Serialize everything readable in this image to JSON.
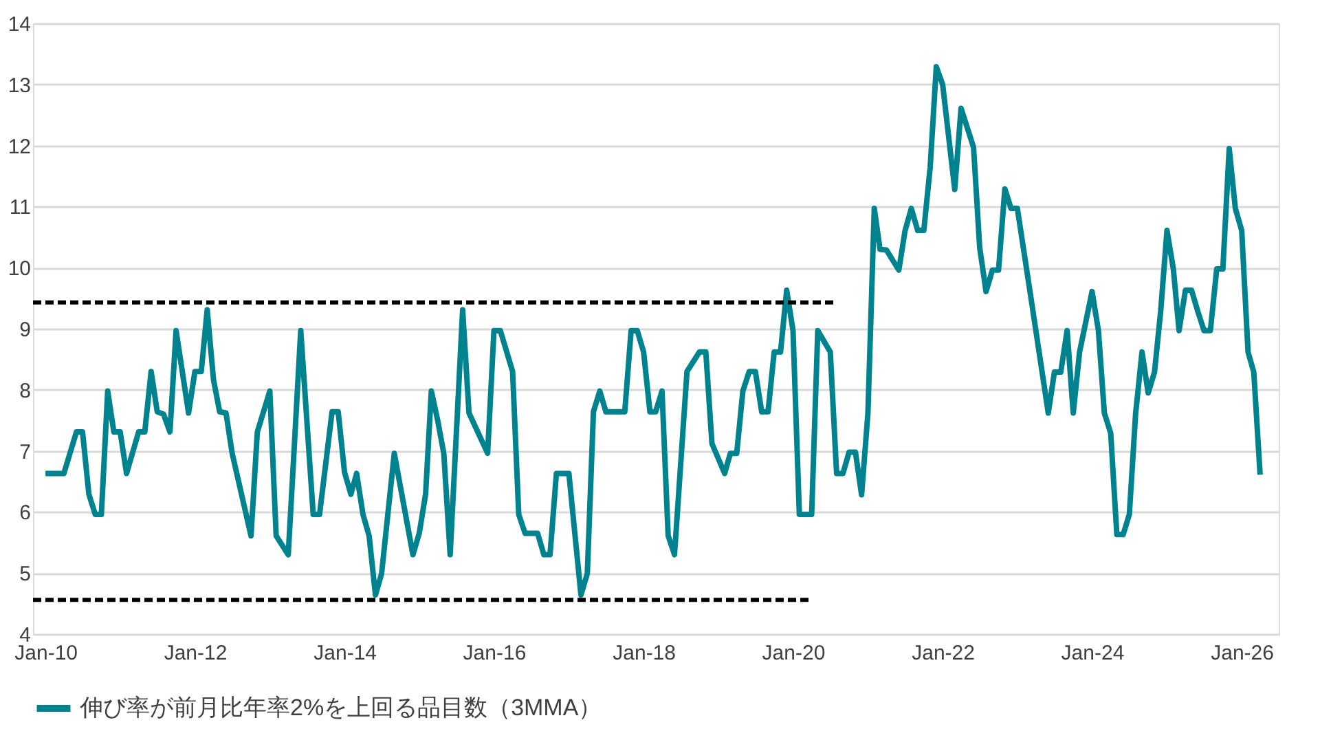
{
  "chart_data": {
    "type": "line",
    "legend_title": null,
    "xlim": [
      "2009-11",
      "2026-07"
    ],
    "ylim": [
      4,
      14
    ],
    "xticks": [
      {
        "value": "2010-01",
        "label": "Jan-10"
      },
      {
        "value": "2012-01",
        "label": "Jan-12"
      },
      {
        "value": "2014-01",
        "label": "Jan-14"
      },
      {
        "value": "2016-01",
        "label": "Jan-16"
      },
      {
        "value": "2018-01",
        "label": "Jan-18"
      },
      {
        "value": "2020-01",
        "label": "Jan-20"
      },
      {
        "value": "2022-01",
        "label": "Jan-22"
      },
      {
        "value": "2024-01",
        "label": "Jan-24"
      },
      {
        "value": "2026-01",
        "label": "Jan-26"
      }
    ],
    "yticks": [
      4,
      5,
      6,
      7,
      8,
      9,
      10,
      11,
      12,
      13,
      14
    ],
    "grid": "y",
    "legend": "bottom",
    "marker": "none",
    "series": [
      {
        "name": "伸び率が前月比年率2%を上回る品目数（3MMA）",
        "color": "#00838f",
        "line_style": "solid",
        "x": [
          "2010-01",
          "2010-04",
          "2010-06",
          "2010-07",
          "2010-08",
          "2010-09",
          "2010-10",
          "2010-11",
          "2010-12",
          "2011-01",
          "2011-02",
          "2011-04",
          "2011-05",
          "2011-06",
          "2011-07",
          "2011-08",
          "2011-09",
          "2011-10",
          "2011-12",
          "2012-01",
          "2012-02",
          "2012-03",
          "2012-04",
          "2012-05",
          "2012-06",
          "2012-07",
          "2012-10",
          "2012-11",
          "2013-01",
          "2013-02",
          "2013-04",
          "2013-06",
          "2013-08",
          "2013-09",
          "2013-11",
          "2013-12",
          "2014-01",
          "2014-02",
          "2014-03",
          "2014-04",
          "2014-05",
          "2014-06",
          "2014-07",
          "2014-09",
          "2014-12",
          "2015-01",
          "2015-02",
          "2015-03",
          "2015-04",
          "2015-05",
          "2015-06",
          "2015-08",
          "2015-09",
          "2015-12",
          "2016-01",
          "2016-02",
          "2016-04",
          "2016-05",
          "2016-06",
          "2016-08",
          "2016-09",
          "2016-10",
          "2016-11",
          "2017-01",
          "2017-03",
          "2017-04",
          "2017-05",
          "2017-06",
          "2017-07",
          "2017-10",
          "2017-11",
          "2017-12",
          "2018-01",
          "2018-02",
          "2018-03",
          "2018-04",
          "2018-05",
          "2018-06",
          "2018-08",
          "2018-10",
          "2018-11",
          "2018-12",
          "2019-02",
          "2019-03",
          "2019-04",
          "2019-05",
          "2019-06",
          "2019-07",
          "2019-08",
          "2019-09",
          "2019-10",
          "2019-11",
          "2019-12",
          "2020-01",
          "2020-02",
          "2020-04",
          "2020-05",
          "2020-07",
          "2020-08",
          "2020-09",
          "2020-10",
          "2020-11",
          "2020-12",
          "2021-01",
          "2021-02",
          "2021-03",
          "2021-04",
          "2021-06",
          "2021-07",
          "2021-08",
          "2021-09",
          "2021-10",
          "2021-11",
          "2021-12",
          "2022-01",
          "2022-03",
          "2022-04",
          "2022-06",
          "2022-07",
          "2022-08",
          "2022-09",
          "2022-10",
          "2022-11",
          "2022-12",
          "2023-01",
          "2023-03",
          "2023-06",
          "2023-07",
          "2023-08",
          "2023-09",
          "2023-10",
          "2023-11",
          "2024-01",
          "2024-02",
          "2024-03",
          "2024-04",
          "2024-05",
          "2024-06",
          "2024-07",
          "2024-08",
          "2024-09",
          "2024-10",
          "2024-11",
          "2024-12",
          "2025-01",
          "2025-02",
          "2025-03",
          "2025-04",
          "2025-05",
          "2025-06",
          "2025-07",
          "2025-08",
          "2025-09",
          "2025-10",
          "2025-11",
          "2025-12",
          "2026-01",
          "2026-02",
          "2026-03",
          "2026-04"
        ],
        "values": [
          6.63,
          6.63,
          7.31,
          7.31,
          6.29,
          5.96,
          5.96,
          7.98,
          7.31,
          7.31,
          6.63,
          7.31,
          7.31,
          8.3,
          7.64,
          7.6,
          7.31,
          8.97,
          7.62,
          8.3,
          8.3,
          9.31,
          8.16,
          7.64,
          7.62,
          6.96,
          5.61,
          7.31,
          7.98,
          5.61,
          5.3,
          8.97,
          5.96,
          5.96,
          7.64,
          7.64,
          6.65,
          6.29,
          6.63,
          5.96,
          5.61,
          4.64,
          4.99,
          6.96,
          5.3,
          5.65,
          6.29,
          7.98,
          7.5,
          6.96,
          5.3,
          9.31,
          7.62,
          6.96,
          8.97,
          8.97,
          8.3,
          5.96,
          5.65,
          5.65,
          5.3,
          5.3,
          6.63,
          6.63,
          4.64,
          4.99,
          7.64,
          7.98,
          7.64,
          7.64,
          8.97,
          8.97,
          8.62,
          7.64,
          7.64,
          7.98,
          5.61,
          5.3,
          8.3,
          8.62,
          8.62,
          7.12,
          6.63,
          6.96,
          6.96,
          7.98,
          8.3,
          8.3,
          7.64,
          7.64,
          8.62,
          8.62,
          9.63,
          8.97,
          5.96,
          5.96,
          8.97,
          8.62,
          6.63,
          6.63,
          6.98,
          6.98,
          6.28,
          7.62,
          10.97,
          10.3,
          10.29,
          9.96,
          10.6,
          10.97,
          10.61,
          10.61,
          11.64,
          13.29,
          13.0,
          11.28,
          12.61,
          11.97,
          10.33,
          9.61,
          9.96,
          9.96,
          11.29,
          10.97,
          10.97,
          9.67,
          7.62,
          8.29,
          8.29,
          8.97,
          7.62,
          8.62,
          9.61,
          8.97,
          7.62,
          7.29,
          5.63,
          5.63,
          5.96,
          7.62,
          8.62,
          7.95,
          8.29,
          9.28,
          10.61,
          9.98,
          8.97,
          9.63,
          9.63,
          9.28,
          8.97,
          8.97,
          9.98,
          9.98,
          11.95,
          10.97,
          10.61,
          8.62,
          8.29,
          6.61
        ]
      },
      {
        "color": "#000000",
        "line_style": "dashed",
        "x": [
          "2009-11",
          "2020-08"
        ],
        "values": [
          9.43,
          9.43
        ]
      },
      {
        "color": "#000000",
        "line_style": "dashed",
        "x": [
          "2009-11",
          "2020-04"
        ],
        "values": [
          4.56,
          4.56
        ]
      }
    ]
  }
}
